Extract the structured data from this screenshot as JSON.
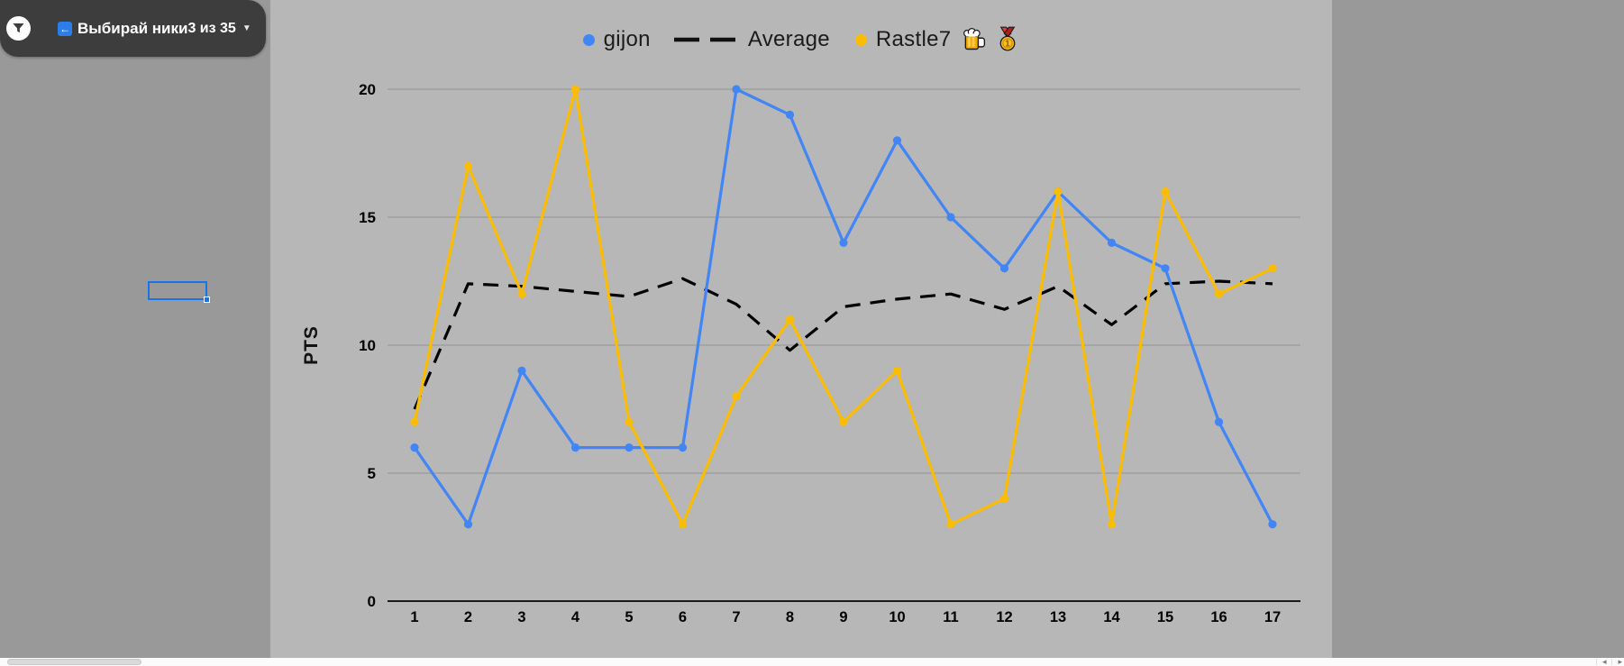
{
  "header": {
    "title": "Выбирай ники",
    "count": "3 из 35"
  },
  "icons": {
    "back_arrow": "←",
    "dropdown_caret": "▼",
    "scroll_left": "◂",
    "scroll_right": "▸"
  },
  "colors": {
    "page_bg": "#999999",
    "plot_bg": "#b7b7b7",
    "header_bg": "#3d3d3d",
    "selection_blue": "#1a73e8",
    "grid": "#9a9a9a",
    "axis": "#000000"
  },
  "chart_data": {
    "type": "line",
    "x": [
      1,
      2,
      3,
      4,
      5,
      6,
      7,
      8,
      9,
      10,
      11,
      12,
      13,
      14,
      15,
      16,
      17
    ],
    "xlabel": "",
    "ylabel": "PTS",
    "ylim": [
      0,
      20
    ],
    "yticks": [
      0,
      5,
      10,
      15,
      20
    ],
    "grid": true,
    "legend_position": "top-center",
    "series": [
      {
        "name": "gijon",
        "color": "#4285f4",
        "style": "solid",
        "points": true,
        "values": [
          6,
          3,
          9,
          6,
          6,
          6,
          20,
          19,
          14,
          18,
          15,
          13,
          16,
          14,
          13,
          7,
          3
        ]
      },
      {
        "name": "Average",
        "color": "#000000",
        "style": "dashed",
        "points": false,
        "values": [
          7.5,
          12.4,
          12.3,
          12.1,
          11.9,
          12.6,
          11.6,
          9.8,
          11.5,
          11.8,
          12.0,
          11.4,
          12.3,
          10.8,
          12.4,
          12.5,
          12.4
        ]
      },
      {
        "name": "Rastle7",
        "color": "#fbbc04",
        "style": "solid",
        "points": true,
        "badges": [
          "beer",
          "gold-medal"
        ],
        "values": [
          7,
          17,
          12,
          20,
          7,
          3,
          8,
          11,
          7,
          9,
          3,
          4,
          16,
          3,
          16,
          12,
          13
        ]
      }
    ]
  }
}
